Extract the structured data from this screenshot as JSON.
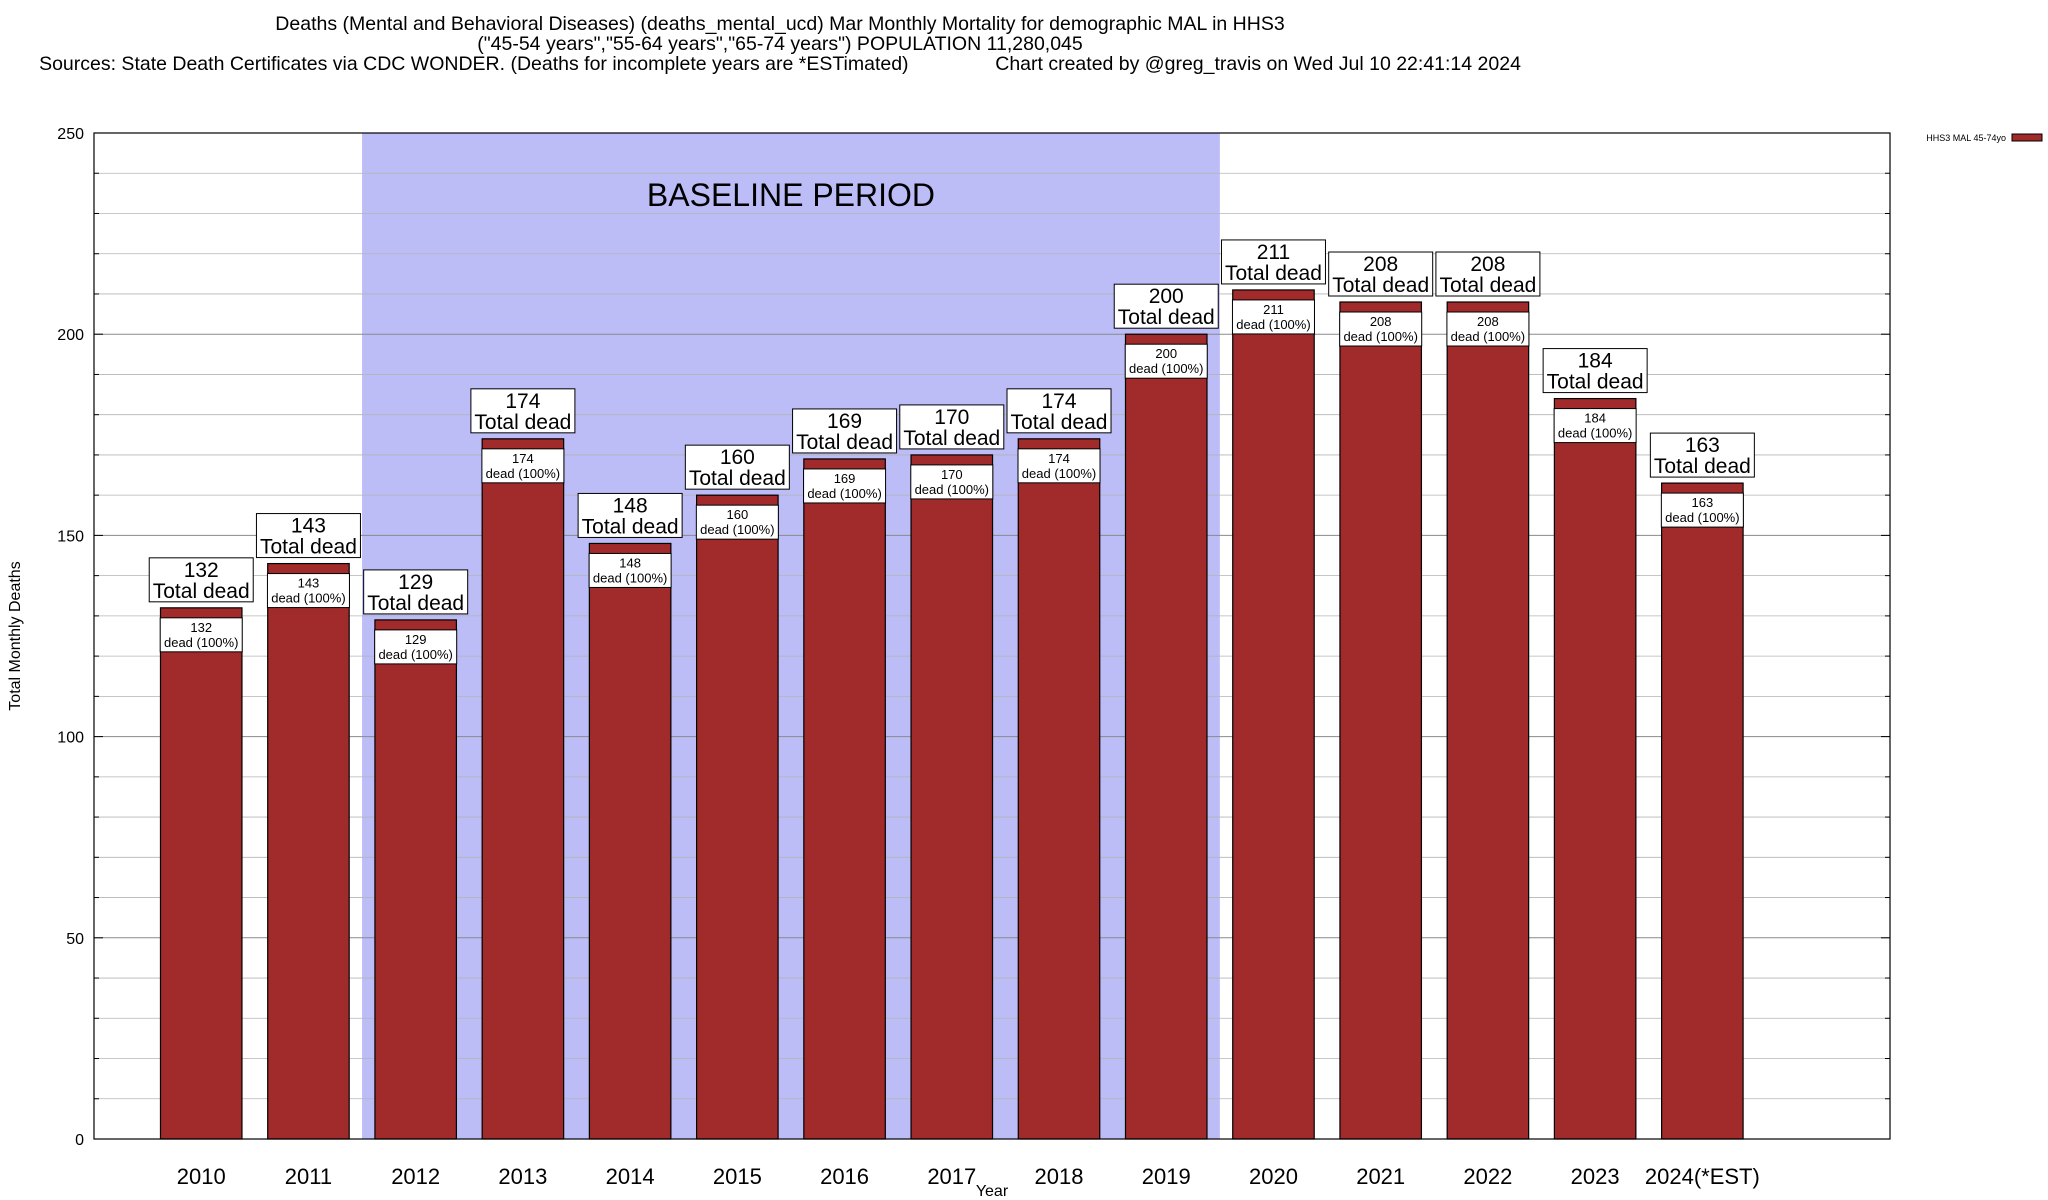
{
  "chart_data": {
    "type": "bar",
    "title_lines": [
      "Deaths (Mental and Behavioral Diseases) (deaths_mental_ucd) Mar Monthly Mortality for demographic MAL in HHS3",
      "(\"45-54 years\",\"55-64 years\",\"65-74 years\") POPULATION 11,280,045",
      "Sources: State Death Certificates via CDC WONDER. (Deaths for incomplete years are *ESTimated)                Chart created by @greg_travis on Wed Jul 10 22:41:14 2024"
    ],
    "xlabel": "Year",
    "ylabel": "Total Monthly Deaths",
    "ylim": [
      0,
      250
    ],
    "yticks": [
      0,
      50,
      100,
      150,
      200,
      250
    ],
    "grid": true,
    "legend_position": "top-right",
    "categories": [
      "2010",
      "2011",
      "2012",
      "2013",
      "2014",
      "2015",
      "2016",
      "2017",
      "2018",
      "2019",
      "2020",
      "2021",
      "2022",
      "2023",
      "2024(*EST)"
    ],
    "series": [
      {
        "name": "HHS3 MAL 45-74yo",
        "color": "#a12a2a",
        "values": [
          132,
          143,
          129,
          174,
          148,
          160,
          169,
          170,
          174,
          200,
          211,
          208,
          208,
          184,
          163
        ]
      }
    ],
    "bar_top_label": "Total dead",
    "bar_inner_label": "dead (100%)",
    "annotation": {
      "text": "BASELINE PERIOD",
      "from_category": "2012",
      "to_category": "2019",
      "color": "#bcbcf7"
    }
  }
}
